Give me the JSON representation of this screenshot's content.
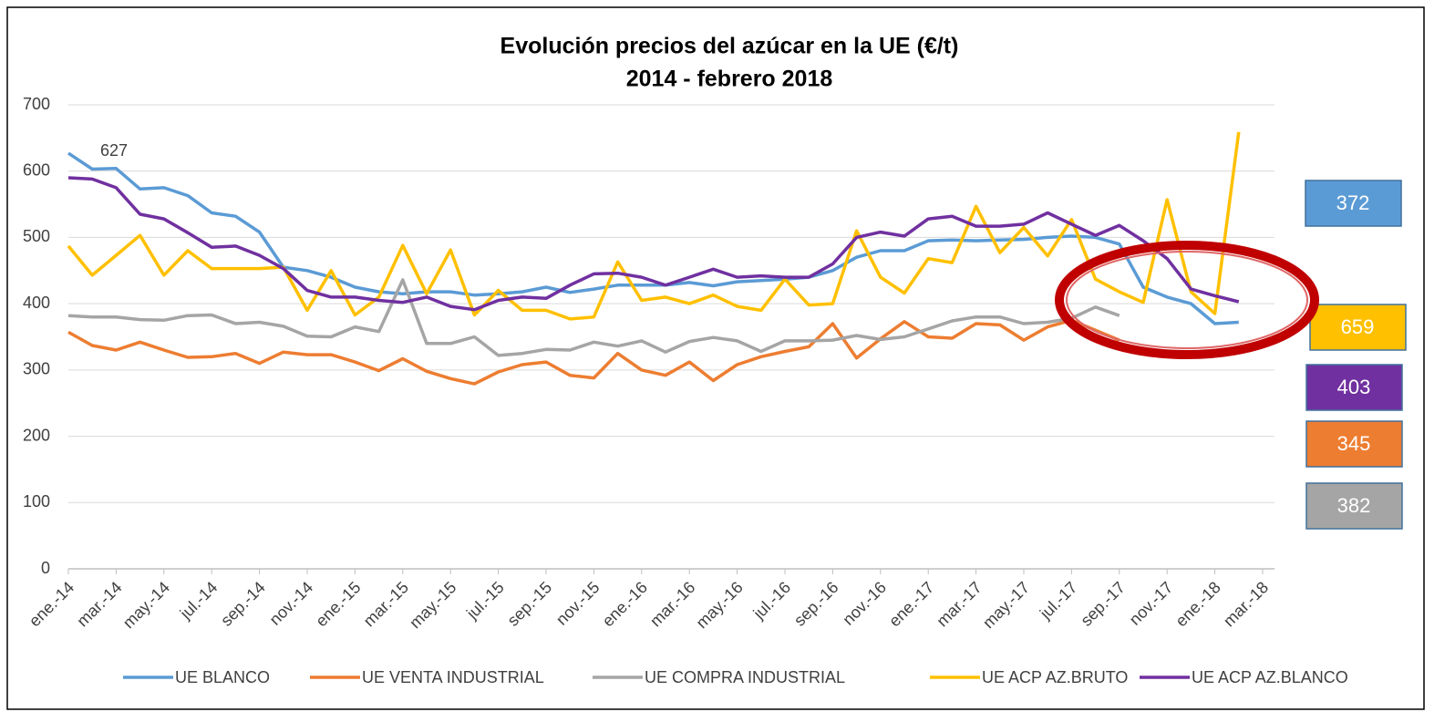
{
  "chart_data": {
    "type": "line",
    "title": "Evolución precios del azúcar en la UE (€/t)",
    "subtitle": "2014 - febrero 2018",
    "categories": [
      "ene.-14",
      null,
      "mar.-14",
      null,
      "may.-14",
      null,
      "jul.-14",
      null,
      "sep.-14",
      null,
      "nov.-14",
      null,
      "ene.-15",
      null,
      "mar.-15",
      null,
      "may.-15",
      null,
      "jul.-15",
      null,
      "sep.-15",
      null,
      "nov.-15",
      null,
      "ene.-16",
      null,
      "mar.-16",
      null,
      "may.-16",
      null,
      "jul.-16",
      null,
      "sep.-16",
      null,
      "nov.-16",
      null,
      "ene.-17",
      null,
      "mar.-17",
      null,
      "may.-17",
      null,
      "jul.-17",
      null,
      "sep.-17",
      null,
      "nov.-17",
      null,
      "ene.-18",
      null,
      "mar.-18"
    ],
    "series": [
      {
        "name": "UE BLANCO",
        "color": "#5b9bd5",
        "values": [
          627,
          603,
          604,
          573,
          575,
          563,
          537,
          532,
          508,
          455,
          450,
          440,
          425,
          418,
          415,
          418,
          418,
          413,
          415,
          418,
          425,
          417,
          422,
          428,
          428,
          428,
          432,
          427,
          433,
          435,
          437,
          440,
          450,
          470,
          480,
          480,
          495,
          496,
          495,
          496,
          497,
          500,
          502,
          500,
          490,
          425,
          410,
          400,
          370,
          372,
          null
        ]
      },
      {
        "name": "UE VENTA INDUSTRIAL",
        "color": "#ed7d31",
        "values": [
          357,
          337,
          330,
          342,
          330,
          319,
          320,
          325,
          310,
          327,
          323,
          323,
          312,
          299,
          317,
          298,
          287,
          279,
          297,
          308,
          312,
          292,
          288,
          325,
          300,
          292,
          312,
          284,
          308,
          320,
          328,
          335,
          370,
          318,
          347,
          373,
          350,
          348,
          370,
          368,
          345,
          365,
          375,
          360,
          345,
          null,
          null,
          null,
          null,
          null,
          null
        ]
      },
      {
        "name": "UE COMPRA INDUSTRIAL",
        "color": "#a5a5a5",
        "values": [
          382,
          380,
          380,
          376,
          375,
          382,
          383,
          370,
          372,
          366,
          351,
          350,
          365,
          358,
          436,
          340,
          340,
          350,
          322,
          325,
          331,
          330,
          342,
          336,
          344,
          327,
          343,
          349,
          344,
          328,
          344,
          344,
          345,
          352,
          346,
          350,
          362,
          374,
          380,
          380,
          370,
          372,
          378,
          395,
          382,
          null,
          null,
          null,
          null,
          null,
          null
        ]
      },
      {
        "name": "UE ACP AZ.BRUTO",
        "color": "#ffc000",
        "values": [
          487,
          443,
          473,
          503,
          443,
          480,
          453,
          453,
          453,
          455,
          390,
          450,
          383,
          410,
          488,
          415,
          481,
          383,
          420,
          390,
          390,
          377,
          380,
          463,
          405,
          410,
          400,
          413,
          396,
          390,
          437,
          398,
          400,
          510,
          440,
          416,
          468,
          462,
          547,
          477,
          515,
          472,
          527,
          437,
          418,
          402,
          557,
          418,
          385,
          659,
          null
        ]
      },
      {
        "name": "UE ACP AZ.BLANCO",
        "color": "#7030a0",
        "values": [
          590,
          588,
          575,
          535,
          528,
          507,
          485,
          487,
          473,
          453,
          420,
          410,
          410,
          405,
          402,
          410,
          396,
          391,
          405,
          410,
          408,
          428,
          445,
          446,
          440,
          428,
          440,
          452,
          440,
          442,
          440,
          440,
          460,
          500,
          508,
          502,
          528,
          532,
          517,
          517,
          520,
          537,
          520,
          503,
          518,
          495,
          468,
          422,
          412,
          403,
          null
        ]
      }
    ],
    "ylim": [
      0,
      700
    ],
    "yticks": [
      0,
      100,
      200,
      300,
      400,
      500,
      600,
      700
    ],
    "grid": true,
    "legend": "bottom"
  }
}
